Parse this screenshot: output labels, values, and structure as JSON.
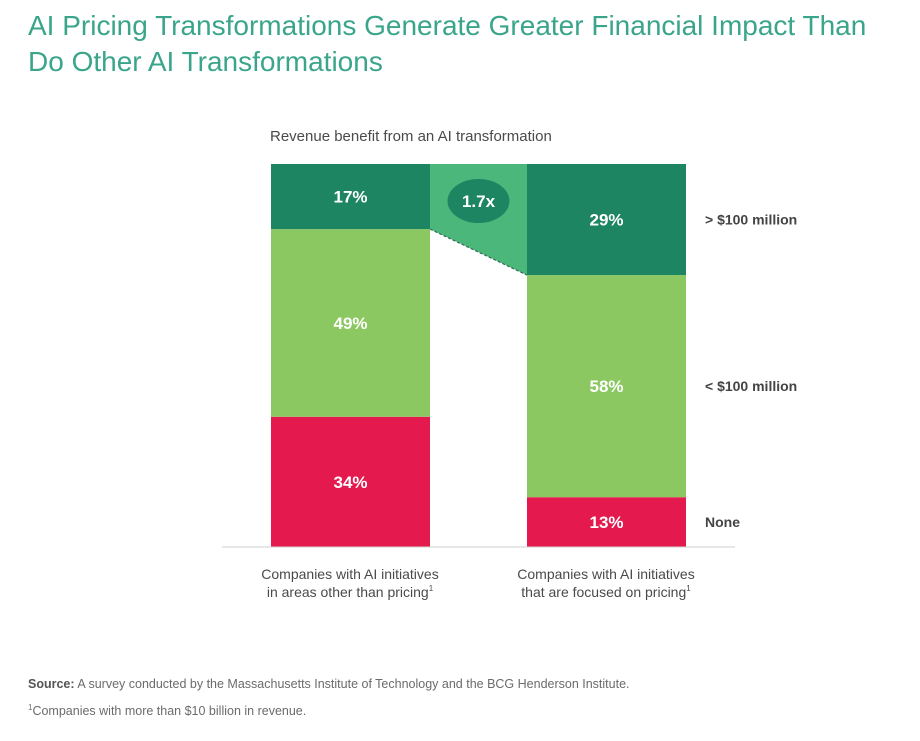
{
  "title_line1": "AI Pricing Transformations Generate Greater Financial Impact Than",
  "title_line2": "Do Other AI Transformations",
  "colors": {
    "title": "#3aa58a",
    "gt100": "#1e8562",
    "lt100": "#8cc862",
    "none": "#e41a4f",
    "multiplier": "#4cb77a"
  },
  "chart_data": {
    "type": "bar",
    "stacked": true,
    "percent_stacked": true,
    "title": "Revenue benefit from an AI transformation",
    "categories": [
      {
        "line1": "Companies with AI initiatives",
        "line2": "in areas other than pricing",
        "sup": "1"
      },
      {
        "line1": "Companies with AI initiatives",
        "line2": "that are focused on pricing",
        "sup": "1"
      }
    ],
    "series": [
      {
        "name": "None",
        "color_key": "none",
        "values": [
          34,
          13
        ],
        "labels": [
          "34%",
          "13%"
        ]
      },
      {
        "name": "< $100 million",
        "color_key": "lt100",
        "values": [
          49,
          58
        ],
        "labels": [
          "49%",
          "58%"
        ]
      },
      {
        "name": "> $100 million",
        "color_key": "gt100",
        "values": [
          17,
          29
        ],
        "labels": [
          "17%",
          "29%"
        ]
      }
    ],
    "legend_labels": [
      "> $100 million",
      "< $100 million",
      "None"
    ],
    "annotation": "1.7x"
  },
  "source_label": "Source:",
  "source_text": " A survey conducted by the Massachusetts Institute of Technology and the BCG Henderson Institute.",
  "footnote_sup": "1",
  "footnote_text": "Companies with more than $10 billion in revenue."
}
